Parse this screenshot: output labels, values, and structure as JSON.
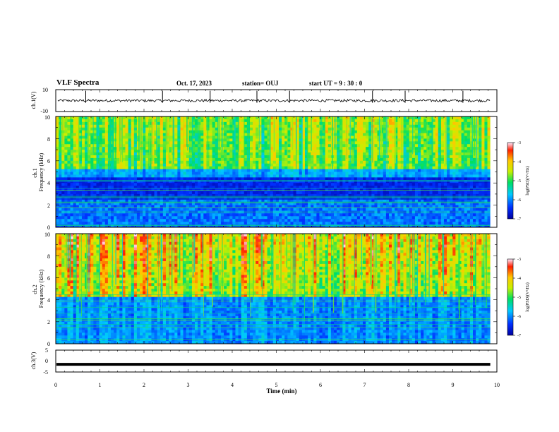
{
  "header": {
    "title": "VLF Spectra",
    "date": "Oct. 17, 2023",
    "station": "station= OUJ",
    "start": "start  UT =  9 : 30 : 0"
  },
  "chart_data": [
    {
      "type": "line",
      "ylabel": "ch.1(V)",
      "xlim": [
        0,
        10
      ],
      "ylim": [
        -10,
        10
      ],
      "yticks": [
        "10",
        "-10"
      ],
      "baseline": 0,
      "noise_amplitude": 1,
      "spikes": [
        0.68,
        2.42,
        3.5,
        4.56,
        5.3,
        7.18,
        7.92,
        9.23
      ]
    },
    {
      "type": "heatmap",
      "ylabel": "ch.1\nFrequency (kHz)",
      "xlim": [
        0,
        10
      ],
      "ylim": [
        0,
        10
      ],
      "yticks": [
        "0",
        "2",
        "4",
        "6",
        "8",
        "10"
      ],
      "colorbar": {
        "label": "log(PSD)(V²/Hz)",
        "ticks": [
          "-3",
          "-4",
          "-5",
          "-6",
          "-7"
        ],
        "range": [
          -7,
          -3
        ]
      },
      "quiet_bands_khz": [
        [
          2.5,
          4.5
        ]
      ],
      "active_above_khz": 5.2
    },
    {
      "type": "heatmap",
      "ylabel": "ch.2\nFrequency (kHz)",
      "xlim": [
        0,
        10
      ],
      "ylim": [
        0,
        10
      ],
      "yticks": [
        "0",
        "2",
        "4",
        "6",
        "8",
        "10"
      ],
      "colorbar": {
        "label": "log(PSD)(V²/Hz)",
        "ticks": [
          "-3",
          "-4",
          "-5",
          "-6",
          "-7"
        ],
        "range": [
          -7,
          -3
        ]
      },
      "active_above_khz": 4.2
    },
    {
      "type": "line",
      "ylabel": "ch.3(V)",
      "xlim": [
        0,
        10
      ],
      "ylim": [
        -5,
        5
      ],
      "yticks": [
        "5",
        "0",
        "-5"
      ],
      "level": -1.5
    }
  ],
  "xaxis": {
    "label": "Time  (min)",
    "ticks": [
      "0",
      "1",
      "2",
      "3",
      "4",
      "5",
      "6",
      "7",
      "8",
      "9",
      "10"
    ]
  }
}
